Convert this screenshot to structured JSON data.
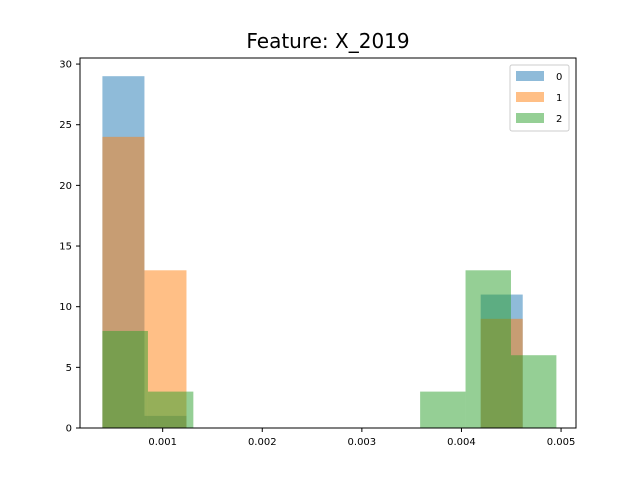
{
  "chart_data": {
    "type": "histogram",
    "title": "Feature: X_2019",
    "xlabel": "",
    "ylabel": "",
    "xlim": [
      0.00017,
      0.00515
    ],
    "ylim": [
      0,
      30.5
    ],
    "x_ticks": [
      0.001,
      0.002,
      0.003,
      0.004,
      0.005
    ],
    "x_tick_labels": [
      "0.001",
      "0.002",
      "0.003",
      "0.004",
      "0.005"
    ],
    "y_ticks": [
      0,
      5,
      10,
      15,
      20,
      25,
      30
    ],
    "y_tick_labels": [
      "0",
      "5",
      "10",
      "15",
      "20",
      "25",
      "30"
    ],
    "grid": false,
    "legend_position": "top-right",
    "series": [
      {
        "name": "0",
        "color": "#1f77b4",
        "opacity": 0.5,
        "bins": [
          {
            "x0": 0.000395,
            "x1": 0.000817,
            "count": 29
          },
          {
            "x0": 0.000817,
            "x1": 0.001239,
            "count": 1
          },
          {
            "x0": 0.004193,
            "x1": 0.004615,
            "count": 11
          }
        ]
      },
      {
        "name": "1",
        "color": "#ff7f0e",
        "opacity": 0.5,
        "bins": [
          {
            "x0": 0.000395,
            "x1": 0.000817,
            "count": 24
          },
          {
            "x0": 0.000817,
            "x1": 0.001239,
            "count": 13
          },
          {
            "x0": 0.004193,
            "x1": 0.004615,
            "count": 9
          },
          {
            "x0": 0.004615,
            "x1": 0.00463,
            "count": 0
          }
        ]
      },
      {
        "name": "2",
        "color": "#2ca02c",
        "opacity": 0.5,
        "bins": [
          {
            "x0": 0.000395,
            "x1": 0.000852,
            "count": 8
          },
          {
            "x0": 0.000852,
            "x1": 0.001308,
            "count": 3
          },
          {
            "x0": 0.003585,
            "x1": 0.004041,
            "count": 3
          },
          {
            "x0": 0.004041,
            "x1": 0.004497,
            "count": 13
          },
          {
            "x0": 0.004497,
            "x1": 0.004953,
            "count": 6
          }
        ]
      }
    ]
  }
}
